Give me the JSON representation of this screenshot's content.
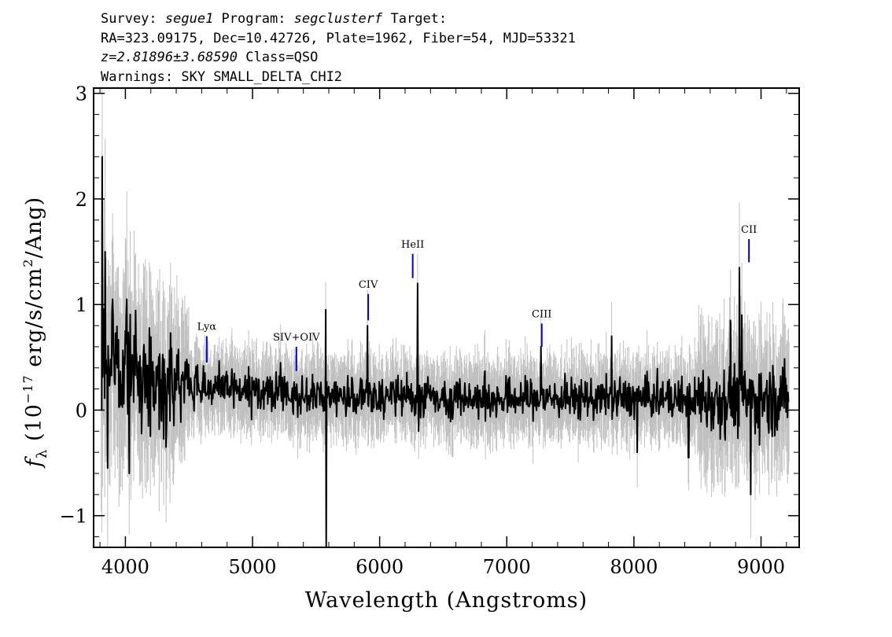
{
  "header": {
    "line1_survey_label": "Survey: ",
    "survey": "segue1",
    "line1_program_label": " Program: ",
    "program": "segclusterf",
    "line1_target_label": " Target:",
    "line2": "RA=323.09175, Dec=10.42726, Plate=1962, Fiber=54, MJD=53321",
    "redshift": "z=2.81896±3.68590",
    "class_text": " Class=QSO",
    "warnings": "Warnings: SKY SMALL_DELTA_CHI2"
  },
  "chart_data": {
    "type": "line",
    "xlabel": "Wavelength (Angstroms)",
    "ylabel": "f_λ (10^-17 erg/s/cm^2/Ang)",
    "ylabel_parts": {
      "f": "f",
      "lambda": "λ",
      "pre": " (10",
      "exp": "−17",
      "mid": " erg/s/cm",
      "exp2": "2",
      "post": "/Ang)"
    },
    "xlim": [
      3750,
      9300
    ],
    "ylim": [
      -1.3,
      3.05
    ],
    "xticks": [
      4000,
      5000,
      6000,
      7000,
      8000,
      9000
    ],
    "yticks": [
      -1,
      0,
      1,
      2,
      3
    ],
    "xtick_labels": [
      "4000",
      "5000",
      "6000",
      "7000",
      "8000",
      "9000"
    ],
    "ytick_labels": [
      "−1",
      "0",
      "1",
      "2",
      "3"
    ],
    "grid": false,
    "legend": "none",
    "colors": {
      "flux": "#000000",
      "error": "#c0c0c0",
      "line_marker": "#0000cc"
    },
    "spectrum_range": [
      3810,
      9220
    ],
    "flux_features": [
      {
        "x": 3812,
        "y": 0.0
      },
      {
        "x": 3818,
        "y": 2.4
      },
      {
        "x": 3825,
        "y": 0.6
      },
      {
        "x": 3840,
        "y": 1.5
      },
      {
        "x": 3860,
        "y": -0.55
      },
      {
        "x": 3900,
        "y": 1.05
      },
      {
        "x": 4010,
        "y": 1.05
      },
      {
        "x": 4030,
        "y": -0.6
      },
      {
        "x": 4320,
        "y": -0.35
      },
      {
        "x": 5220,
        "y": 0.45
      },
      {
        "x": 5577,
        "y": 0.95
      },
      {
        "x": 5580,
        "y": -1.3
      },
      {
        "x": 5905,
        "y": 0.8
      },
      {
        "x": 6300,
        "y": 1.2
      },
      {
        "x": 6305,
        "y": -0.2
      },
      {
        "x": 7270,
        "y": 0.6
      },
      {
        "x": 7825,
        "y": 0.7
      },
      {
        "x": 8025,
        "y": -0.4
      },
      {
        "x": 8430,
        "y": -0.45
      },
      {
        "x": 8760,
        "y": 0.85
      },
      {
        "x": 8830,
        "y": 1.35
      },
      {
        "x": 8850,
        "y": 0.9
      },
      {
        "x": 8920,
        "y": -0.8
      }
    ],
    "line_markers": [
      {
        "label": "Lyα",
        "x": 4640,
        "y0": 0.45,
        "y1": 0.7
      },
      {
        "label": "SIV+OIV",
        "x": 5345,
        "y0": 0.37,
        "y1": 0.6
      },
      {
        "label": "CIV",
        "x": 5910,
        "y0": 0.85,
        "y1": 1.1
      },
      {
        "label": "HeII",
        "x": 6260,
        "y0": 1.25,
        "y1": 1.48
      },
      {
        "label": "CIII",
        "x": 7275,
        "y0": 0.6,
        "y1": 0.82
      },
      {
        "label": "CII",
        "x": 8905,
        "y0": 1.4,
        "y1": 1.62
      }
    ]
  }
}
